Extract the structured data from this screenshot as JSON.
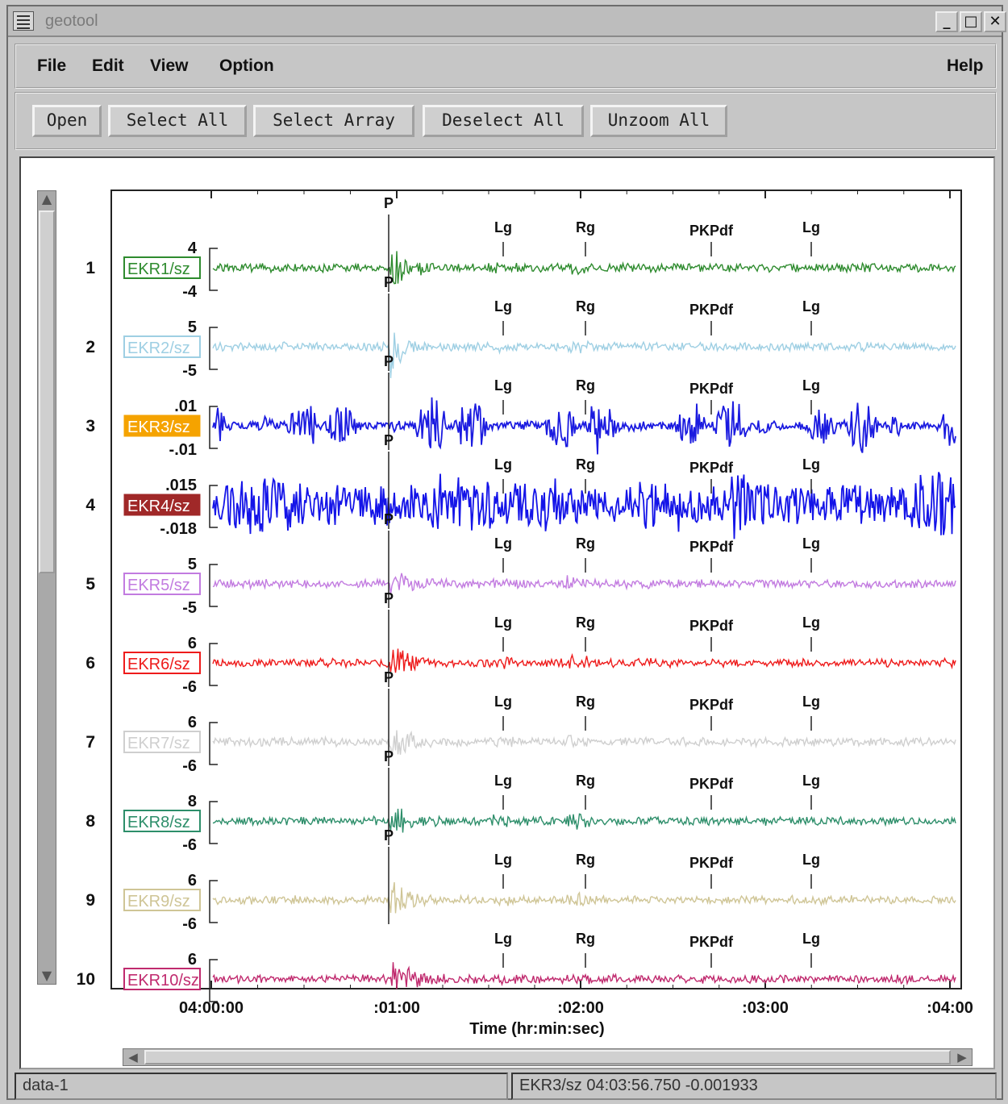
{
  "window": {
    "title": "geotool"
  },
  "menu": {
    "file": "File",
    "edit": "Edit",
    "view": "View",
    "option": "Option",
    "help": "Help"
  },
  "toolbar": {
    "open": "Open",
    "select_all": "Select All",
    "select_array": "Select Array",
    "deselect_all": "Deselect All",
    "unzoom_all": "Unzoom All"
  },
  "plot": {
    "x_axis_label": "Time (hr:min:sec)",
    "x_ticks": [
      "04:00:00",
      ":01:00",
      ":02:00",
      ":03:00",
      ":04:00"
    ],
    "phases": [
      "P",
      "Lg",
      "Rg",
      "PKPdf",
      "Lg"
    ],
    "traces": [
      {
        "index": "1",
        "label": "EKR1/sz",
        "color": "#2e8b2e",
        "top": "4",
        "bottom": "-4",
        "style": "noise"
      },
      {
        "index": "2",
        "label": "EKR2/sz",
        "color": "#9ecfe3",
        "top": "5",
        "bottom": "-5",
        "style": "noise"
      },
      {
        "index": "3",
        "label": "EKR3/sz",
        "color": "#1b1be0",
        "top": ".01",
        "bottom": "-.01",
        "style": "bursts",
        "label_bg": "#f5a300"
      },
      {
        "index": "4",
        "label": "EKR4/sz",
        "color": "#1414e8",
        "top": ".015",
        "bottom": "-.018",
        "style": "dense",
        "label_bg": "#a02828"
      },
      {
        "index": "5",
        "label": "EKR5/sz",
        "color": "#c27be0",
        "top": "5",
        "bottom": "-5",
        "style": "noise"
      },
      {
        "index": "6",
        "label": "EKR6/sz",
        "color": "#ee1b1b",
        "top": "6",
        "bottom": "-6",
        "style": "noise"
      },
      {
        "index": "7",
        "label": "EKR7/sz",
        "color": "#cfcfcf",
        "top": "6",
        "bottom": "-6",
        "style": "noise"
      },
      {
        "index": "8",
        "label": "EKR8/sz",
        "color": "#2d8e6a",
        "top": "8",
        "bottom": "-6",
        "style": "noise"
      },
      {
        "index": "9",
        "label": "EKR9/sz",
        "color": "#cfc596",
        "top": "6",
        "bottom": "-6",
        "style": "noise"
      },
      {
        "index": "10",
        "label": "EKR10/sz",
        "color": "#c02a6e",
        "top": "6",
        "bottom": "",
        "style": "noise"
      }
    ]
  },
  "status": {
    "left": "data-1",
    "right": "EKR3/sz  04:03:56.750  -0.001933"
  }
}
